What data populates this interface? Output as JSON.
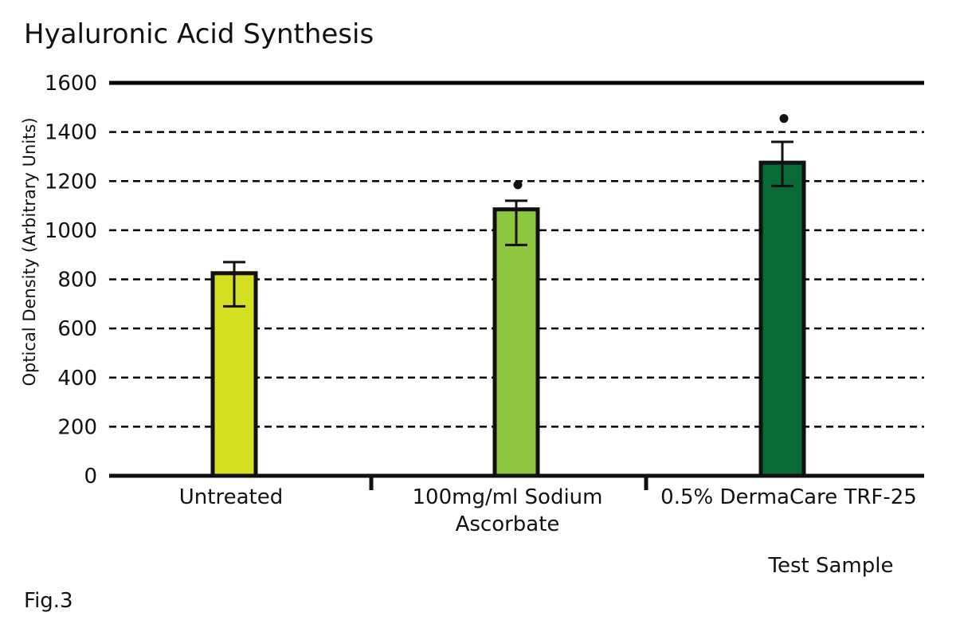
{
  "chart_data": {
    "type": "bar",
    "title": "Hyaluronic Acid Synthesis",
    "ylabel": "Optical Density (Arbitrary Units)",
    "xlabel": "Test Sample",
    "categories": [
      "Untreated",
      "100mg/ml Sodium Ascorbate",
      "0.5% DermaCare TRF-25"
    ],
    "category_lines": [
      [
        "Untreated"
      ],
      [
        "100mg/ml Sodium",
        "Ascorbate"
      ],
      [
        "0.5% DermaCare TRF-25"
      ]
    ],
    "values": [
      825,
      1085,
      1275
    ],
    "error_low": [
      690,
      940,
      1180
    ],
    "error_high": [
      870,
      1120,
      1360
    ],
    "significance_marker_values": [
      null,
      1185,
      1455
    ],
    "colors": [
      "#d4e021",
      "#8dc63f",
      "#086b37"
    ],
    "ylim": [
      0,
      1600
    ],
    "yticks": [
      0,
      200,
      400,
      600,
      800,
      1000,
      1200,
      1400,
      1600
    ],
    "grid": true,
    "grid_style": "dashed"
  },
  "footer": {
    "figure_label": "Fig.3"
  }
}
